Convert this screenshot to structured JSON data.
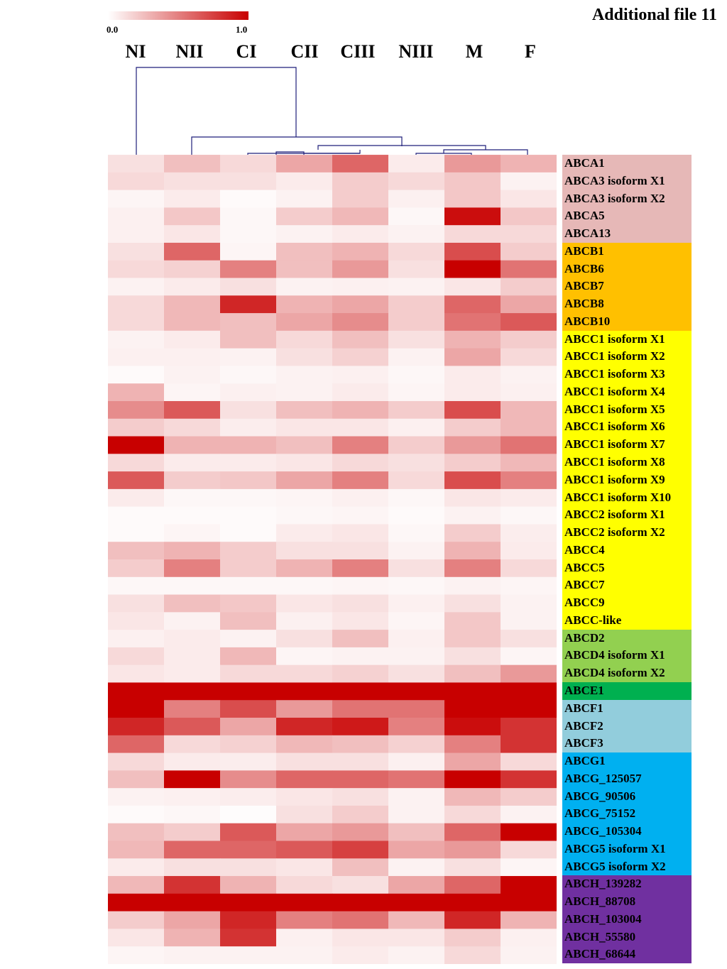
{
  "header": {
    "title": "Additional file 11"
  },
  "colorbar": {
    "min_label": "0.0",
    "max_label": "1.0",
    "low_color": "#ffffff",
    "high_color": "#c80000"
  },
  "chart_data": {
    "type": "heatmap",
    "columns": [
      "NI",
      "NII",
      "CI",
      "CII",
      "CIII",
      "NIII",
      "M",
      "F"
    ],
    "rows": [
      "ABCA1",
      "ABCA3 isoform X1",
      "ABCA3 isoform X2",
      "ABCA5",
      "ABCA13",
      "ABCB1",
      "ABCB6",
      "ABCB7",
      "ABCB8",
      "ABCB10",
      "ABCC1 isoform X1",
      "ABCC1 isoform X2",
      "ABCC1 isoform X3",
      "ABCC1 isoform X4",
      "ABCC1 isoform X5",
      "ABCC1 isoform X6",
      "ABCC1 isoform X7",
      "ABCC1 isoform X8",
      "ABCC1 isoform X9",
      "ABCC1 isoform X10",
      "ABCC2 isoform X1",
      "ABCC2 isoform X2",
      "ABCC4",
      "ABCC5",
      "ABCC7",
      "ABCC9",
      "ABCC-like",
      "ABCD2",
      "ABCD4 isoform X1",
      "ABCD4 isoform X2",
      "ABCE1",
      "ABCF1",
      "ABCF2",
      "ABCF3",
      "ABCG1",
      "ABCG_125057",
      "ABCG_90506",
      "ABCG_75152",
      "ABCG_105304",
      "ABCG5 isoform X1",
      "ABCG5 isoform X2",
      "ABCH_139282",
      "ABCH_88708",
      "ABCH_103004",
      "ABCH_55580",
      "ABCH_68644"
    ],
    "values": [
      [
        0.12,
        0.25,
        0.15,
        0.35,
        0.6,
        0.08,
        0.4,
        0.3
      ],
      [
        0.15,
        0.12,
        0.12,
        0.08,
        0.2,
        0.15,
        0.22,
        0.05
      ],
      [
        0.04,
        0.08,
        0.02,
        0.05,
        0.2,
        0.06,
        0.22,
        0.1
      ],
      [
        0.06,
        0.22,
        0.03,
        0.2,
        0.28,
        0.03,
        0.95,
        0.22
      ],
      [
        0.06,
        0.1,
        0.03,
        0.05,
        0.08,
        0.05,
        0.15,
        0.15
      ],
      [
        0.12,
        0.6,
        0.04,
        0.25,
        0.3,
        0.15,
        0.7,
        0.2
      ],
      [
        0.15,
        0.18,
        0.5,
        0.25,
        0.4,
        0.12,
        1.0,
        0.55
      ],
      [
        0.05,
        0.08,
        0.12,
        0.05,
        0.06,
        0.05,
        0.1,
        0.2
      ],
      [
        0.15,
        0.28,
        0.85,
        0.3,
        0.35,
        0.2,
        0.6,
        0.35
      ],
      [
        0.15,
        0.28,
        0.25,
        0.35,
        0.45,
        0.2,
        0.55,
        0.65
      ],
      [
        0.05,
        0.08,
        0.25,
        0.15,
        0.25,
        0.12,
        0.3,
        0.2
      ],
      [
        0.06,
        0.06,
        0.05,
        0.12,
        0.18,
        0.05,
        0.35,
        0.15
      ],
      [
        0.02,
        0.05,
        0.03,
        0.05,
        0.06,
        0.03,
        0.08,
        0.05
      ],
      [
        0.3,
        0.04,
        0.06,
        0.05,
        0.08,
        0.04,
        0.08,
        0.06
      ],
      [
        0.45,
        0.65,
        0.12,
        0.25,
        0.3,
        0.2,
        0.7,
        0.28
      ],
      [
        0.2,
        0.15,
        0.07,
        0.1,
        0.1,
        0.06,
        0.2,
        0.28
      ],
      [
        1.0,
        0.3,
        0.3,
        0.25,
        0.5,
        0.2,
        0.4,
        0.55
      ],
      [
        0.15,
        0.08,
        0.08,
        0.1,
        0.15,
        0.12,
        0.2,
        0.28
      ],
      [
        0.65,
        0.2,
        0.22,
        0.35,
        0.5,
        0.15,
        0.7,
        0.5
      ],
      [
        0.08,
        0.03,
        0.03,
        0.04,
        0.06,
        0.03,
        0.1,
        0.08
      ],
      [
        0.02,
        0.02,
        0.02,
        0.03,
        0.04,
        0.02,
        0.05,
        0.03
      ],
      [
        0.02,
        0.04,
        0.02,
        0.08,
        0.1,
        0.03,
        0.2,
        0.07
      ],
      [
        0.25,
        0.3,
        0.2,
        0.12,
        0.12,
        0.05,
        0.3,
        0.08
      ],
      [
        0.2,
        0.5,
        0.2,
        0.3,
        0.5,
        0.12,
        0.5,
        0.15
      ],
      [
        0.03,
        0.03,
        0.03,
        0.03,
        0.04,
        0.03,
        0.05,
        0.04
      ],
      [
        0.12,
        0.25,
        0.22,
        0.1,
        0.12,
        0.06,
        0.12,
        0.05
      ],
      [
        0.1,
        0.05,
        0.25,
        0.06,
        0.1,
        0.04,
        0.22,
        0.05
      ],
      [
        0.06,
        0.08,
        0.05,
        0.12,
        0.25,
        0.06,
        0.22,
        0.12
      ],
      [
        0.15,
        0.08,
        0.28,
        0.04,
        0.05,
        0.05,
        0.12,
        0.04
      ],
      [
        0.1,
        0.08,
        0.15,
        0.15,
        0.18,
        0.12,
        0.25,
        0.4
      ],
      [
        1.0,
        1.0,
        1.0,
        1.0,
        1.0,
        1.0,
        1.0,
        1.0
      ],
      [
        1.0,
        0.5,
        0.7,
        0.4,
        0.55,
        0.55,
        1.0,
        1.0
      ],
      [
        0.85,
        0.65,
        0.35,
        0.85,
        0.9,
        0.5,
        0.95,
        0.8
      ],
      [
        0.6,
        0.15,
        0.18,
        0.28,
        0.25,
        0.18,
        0.5,
        0.8
      ],
      [
        0.15,
        0.08,
        0.07,
        0.12,
        0.12,
        0.06,
        0.35,
        0.15
      ],
      [
        0.25,
        1.0,
        0.45,
        0.6,
        0.6,
        0.55,
        1.0,
        0.8
      ],
      [
        0.05,
        0.06,
        0.07,
        0.1,
        0.12,
        0.05,
        0.28,
        0.2
      ],
      [
        0.02,
        0.03,
        0.01,
        0.12,
        0.2,
        0.05,
        0.15,
        0.05
      ],
      [
        0.25,
        0.2,
        0.65,
        0.35,
        0.4,
        0.25,
        0.6,
        1.0
      ],
      [
        0.28,
        0.6,
        0.6,
        0.65,
        0.75,
        0.35,
        0.4,
        0.15
      ],
      [
        0.08,
        0.12,
        0.12,
        0.1,
        0.25,
        0.05,
        0.12,
        0.04
      ],
      [
        0.28,
        0.8,
        0.3,
        0.15,
        0.12,
        0.35,
        0.6,
        1.0
      ],
      [
        1.0,
        1.0,
        1.0,
        1.0,
        1.0,
        1.0,
        1.0,
        1.0
      ],
      [
        0.2,
        0.35,
        0.85,
        0.5,
        0.55,
        0.28,
        0.85,
        0.3
      ],
      [
        0.1,
        0.3,
        0.8,
        0.06,
        0.1,
        0.1,
        0.2,
        0.06
      ],
      [
        0.04,
        0.05,
        0.05,
        0.05,
        0.08,
        0.05,
        0.15,
        0.05
      ]
    ],
    "row_group_colors": [
      "#e6b8b7",
      "#e6b8b7",
      "#e6b8b7",
      "#e6b8b7",
      "#e6b8b7",
      "#ffc000",
      "#ffc000",
      "#ffc000",
      "#ffc000",
      "#ffc000",
      "#ffff00",
      "#ffff00",
      "#ffff00",
      "#ffff00",
      "#ffff00",
      "#ffff00",
      "#ffff00",
      "#ffff00",
      "#ffff00",
      "#ffff00",
      "#ffff00",
      "#ffff00",
      "#ffff00",
      "#ffff00",
      "#ffff00",
      "#ffff00",
      "#ffff00",
      "#92d050",
      "#92d050",
      "#92d050",
      "#00b050",
      "#92cddc",
      "#92cddc",
      "#92cddc",
      "#00b0f0",
      "#00b0f0",
      "#00b0f0",
      "#00b0f0",
      "#00b0f0",
      "#00b0f0",
      "#00b0f0",
      "#7030a0",
      "#7030a0",
      "#7030a0",
      "#7030a0",
      "#7030a0"
    ]
  }
}
